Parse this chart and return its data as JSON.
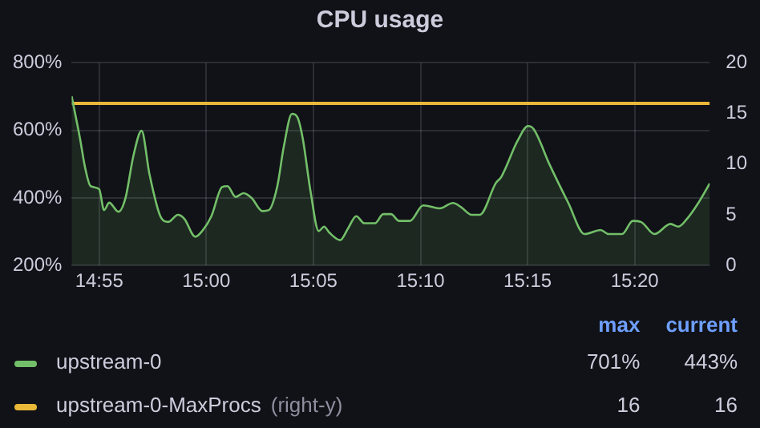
{
  "chart_data": {
    "type": "line",
    "title": "CPU usage",
    "grid": true,
    "legend": "bottom",
    "marker": "none",
    "xlim": [
      14.8953,
      15.3917
    ],
    "xticks": [
      {
        "value": 14.9167,
        "label": "14:55"
      },
      {
        "value": 15,
        "label": "15:00"
      },
      {
        "value": 15.0833,
        "label": "15:05"
      },
      {
        "value": 15.1667,
        "label": "15:10"
      },
      {
        "value": 15.25,
        "label": "15:15"
      },
      {
        "value": 15.3333,
        "label": "15:20"
      }
    ],
    "ylim": [
      200,
      800
    ],
    "yticks": [
      {
        "value": 200,
        "label": "200%"
      },
      {
        "value": 400,
        "label": "400%"
      },
      {
        "value": 600,
        "label": "600%"
      },
      {
        "value": 800,
        "label": "800%"
      }
    ],
    "y2lim": [
      0,
      20
    ],
    "y2ticks": [
      0,
      5,
      10,
      15,
      20
    ],
    "series": [
      {
        "name": "upstream-0",
        "type": "area",
        "color": "#73bf69",
        "x": [
          14.8953,
          14.9017,
          14.9058,
          14.91,
          14.9167,
          14.9205,
          14.9245,
          14.9317,
          14.9372,
          14.9433,
          14.9497,
          14.9558,
          14.9643,
          14.9705,
          14.978,
          14.983,
          14.9915,
          14.9968,
          15.004,
          15.0123,
          15.0165,
          15.0228,
          15.029,
          15.0353,
          15.0437,
          15.0487,
          15.0553,
          15.0603,
          15.0667,
          15.0708,
          15.075,
          15.0812,
          15.0875,
          15.0917,
          15.0958,
          15.1042,
          15.1105,
          15.1167,
          15.123,
          15.1313,
          15.1377,
          15.1438,
          15.15,
          15.1585,
          15.1688,
          15.1815,
          15.192,
          15.1982,
          15.2065,
          15.2128,
          15.2253,
          15.2295,
          15.2422,
          15.2503,
          15.2547,
          15.2672,
          15.2817,
          15.2943,
          15.3068,
          15.313,
          15.3235,
          15.3318,
          15.3382,
          15.3487,
          15.3612,
          15.3673,
          15.374,
          15.3823,
          15.3917
        ],
        "values": [
          701,
          578,
          489,
          435,
          426,
          364,
          386,
          359,
          400,
          524,
          599,
          471,
          346,
          329,
          350,
          338,
          285,
          302,
          346,
          432,
          435,
          403,
          414,
          400,
          361,
          364,
          435,
          551,
          649,
          640,
          578,
          418,
          302,
          315,
          297,
          275,
          311,
          346,
          325,
          325,
          352,
          352,
          332,
          332,
          378,
          369,
          385,
          373,
          350,
          350,
          444,
          462,
          569,
          613,
          604,
          498,
          385,
          293,
          305,
          293,
          293,
          332,
          329,
          293,
          323,
          315,
          338,
          382,
          443
        ]
      },
      {
        "name": "upstream-0-MaxProcs",
        "axis": "y2",
        "color": "#eab839",
        "x": [
          14.8953,
          15.3917
        ],
        "values": [
          16,
          16
        ]
      }
    ],
    "annotations": [
      "max",
      "current",
      "701%",
      "443%",
      "(right-y)",
      "16",
      "16"
    ]
  }
}
